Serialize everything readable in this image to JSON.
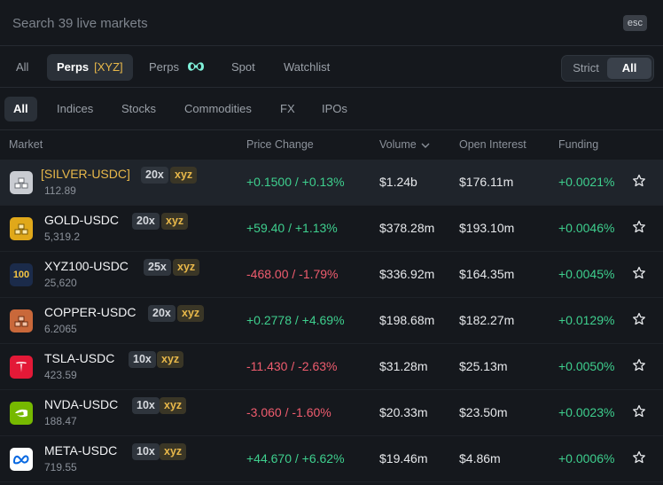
{
  "search": {
    "placeholder": "Search 39 live markets",
    "esc_label": "esc"
  },
  "type_tabs": {
    "all": "All",
    "perps_xyz": "Perps",
    "perps_xyz_tag": "[XYZ]",
    "perps": "Perps",
    "spot": "Spot",
    "watchlist": "Watchlist"
  },
  "toggle": {
    "strict": "Strict",
    "all": "All"
  },
  "categories": [
    "All",
    "Indices",
    "Stocks",
    "Commodities",
    "FX",
    "IPOs"
  ],
  "columns": {
    "market": "Market",
    "price_change": "Price Change",
    "volume": "Volume",
    "open_interest": "Open Interest",
    "funding": "Funding"
  },
  "colors": {
    "positive": "#3ecf8e",
    "negative": "#ef5c6e",
    "accent": "#e8b84a"
  },
  "markets": [
    {
      "symbol": "[SILVER-USDC]",
      "price": "112.89",
      "leverage": "20x",
      "tag": "xyz",
      "change": "+0.1500 / +0.13%",
      "direction": "up",
      "volume": "$1.24b",
      "open_interest": "$176.11m",
      "funding": "+0.0021%",
      "icon": "silver-bars-icon"
    },
    {
      "symbol": "GOLD-USDC",
      "price": "5,319.2",
      "leverage": "20x",
      "tag": "xyz",
      "change": "+59.40 / +1.13%",
      "direction": "up",
      "volume": "$378.28m",
      "open_interest": "$193.10m",
      "funding": "+0.0046%",
      "icon": "gold-bars-icon"
    },
    {
      "symbol": "XYZ100-USDC",
      "price": "25,620",
      "leverage": "25x",
      "tag": "xyz",
      "change": "-468.00 / -1.79%",
      "direction": "down",
      "volume": "$336.92m",
      "open_interest": "$164.35m",
      "funding": "+0.0045%",
      "icon": "xyz100-icon",
      "icon_text": "100"
    },
    {
      "symbol": "COPPER-USDC",
      "price": "6.2065",
      "leverage": "20x",
      "tag": "xyz",
      "change": "+0.2778 / +4.69%",
      "direction": "up",
      "volume": "$198.68m",
      "open_interest": "$182.27m",
      "funding": "+0.0129%",
      "icon": "copper-bars-icon"
    },
    {
      "symbol": "TSLA-USDC",
      "price": "423.59",
      "leverage": "10x",
      "tag": "xyz",
      "change": "-11.430 / -2.63%",
      "direction": "down",
      "volume": "$31.28m",
      "open_interest": "$25.13m",
      "funding": "+0.0050%",
      "icon": "tesla-logo-icon"
    },
    {
      "symbol": "NVDA-USDC",
      "price": "188.47",
      "leverage": "10x",
      "tag": "xyz",
      "change": "-3.060 / -1.60%",
      "direction": "down",
      "volume": "$20.33m",
      "open_interest": "$23.50m",
      "funding": "+0.0023%",
      "icon": "nvidia-logo-icon"
    },
    {
      "symbol": "META-USDC",
      "price": "719.55",
      "leverage": "10x",
      "tag": "xyz",
      "change": "+44.670 / +6.62%",
      "direction": "up",
      "volume": "$19.46m",
      "open_interest": "$4.86m",
      "funding": "+0.0006%",
      "icon": "meta-logo-icon"
    }
  ]
}
